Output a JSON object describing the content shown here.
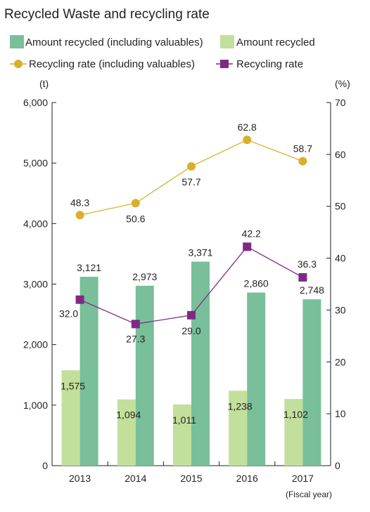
{
  "chart_data": {
    "type": "bar",
    "title": "Recycled Waste and recycling rate",
    "categories": [
      "2013",
      "2014",
      "2015",
      "2016",
      "2017"
    ],
    "xlabel": "(Fiscal year)",
    "ylabel": "(t)",
    "y2label": "(%)",
    "ylim": [
      0,
      6000
    ],
    "y2lim": [
      0,
      70
    ],
    "yticks": [
      "0",
      "1,000",
      "2,000",
      "3,000",
      "4,000",
      "5,000",
      "6,000"
    ],
    "y2ticks": [
      "0",
      "10",
      "20",
      "30",
      "40",
      "50",
      "60",
      "70"
    ],
    "grid": false,
    "legend_position": "top",
    "bars": [
      {
        "name": "Amount recycled",
        "color": "#c3df9c",
        "values": [
          1575,
          1094,
          1011,
          1238,
          1102
        ],
        "labels": [
          "1,575",
          "1,094",
          "1,011",
          "1,238",
          "1,102"
        ]
      },
      {
        "name": "Amount recycled (including valuables)",
        "color": "#78bf9a",
        "values": [
          3121,
          2973,
          3371,
          2860,
          2748
        ],
        "labels": [
          "3,121",
          "2,973",
          "3,371",
          "2,860",
          "2,748"
        ]
      }
    ],
    "lines": [
      {
        "name": "Recycling rate (including valuables)",
        "color": "#d8b02c",
        "marker": "circle",
        "values": [
          48.3,
          50.6,
          57.7,
          62.8,
          58.7
        ],
        "labels": [
          "48.3",
          "50.6",
          "57.7",
          "62.8",
          "58.7"
        ]
      },
      {
        "name": "Recycling rate",
        "color": "#7e2a85",
        "marker": "square",
        "values": [
          32.0,
          27.3,
          29.0,
          42.2,
          36.3
        ],
        "labels": [
          "32.0",
          "27.3",
          "29.0",
          "42.2",
          "36.3"
        ]
      }
    ]
  }
}
